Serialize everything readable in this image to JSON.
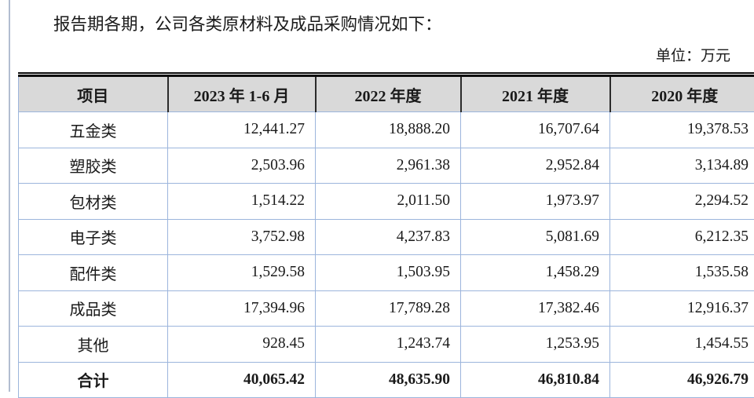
{
  "page": {
    "heading": "报告期各期，公司各类原材料及成品采购情况如下：",
    "unit_label": "单位：万元"
  },
  "colors": {
    "header_background": "#d9d9d9",
    "grid_line_blue": "#9cb5dc",
    "header_divider_black": "#2b2b2b",
    "top_rule_black": "#0d0d0d",
    "page_edge_line": "#b2bdd0",
    "text": "#1a1a1a"
  },
  "table": {
    "columns": [
      "项目",
      "2023 年 1-6 月",
      "2022 年度",
      "2021 年度",
      "2020 年度"
    ],
    "rows": [
      {
        "label": "五金类",
        "values": [
          "12,441.27",
          "18,888.20",
          "16,707.64",
          "19,378.53"
        ],
        "bold": false
      },
      {
        "label": "塑胶类",
        "values": [
          "2,503.96",
          "2,961.38",
          "2,952.84",
          "3,134.89"
        ],
        "bold": false
      },
      {
        "label": "包材类",
        "values": [
          "1,514.22",
          "2,011.50",
          "1,973.97",
          "2,294.52"
        ],
        "bold": false
      },
      {
        "label": "电子类",
        "values": [
          "3,752.98",
          "4,237.83",
          "5,081.69",
          "6,212.35"
        ],
        "bold": false
      },
      {
        "label": "配件类",
        "values": [
          "1,529.58",
          "1,503.95",
          "1,458.29",
          "1,535.58"
        ],
        "bold": false
      },
      {
        "label": "成品类",
        "values": [
          "17,394.96",
          "17,789.28",
          "17,382.46",
          "12,916.37"
        ],
        "bold": false
      },
      {
        "label": "其他",
        "values": [
          "928.45",
          "1,243.74",
          "1,253.95",
          "1,454.55"
        ],
        "bold": false
      },
      {
        "label": "合计",
        "values": [
          "40,065.42",
          "48,635.90",
          "46,810.84",
          "46,926.79"
        ],
        "bold": true
      }
    ]
  }
}
